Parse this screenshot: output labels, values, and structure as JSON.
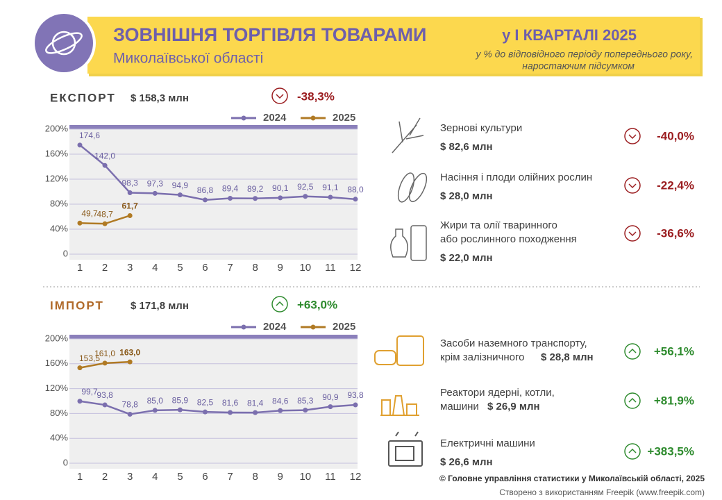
{
  "header": {
    "title": "ЗОВНІШНЯ ТОРГІВЛЯ ТОВАРАМИ",
    "period": "у І КВАРТАЛІ 2025",
    "region": "Миколаївської області",
    "note": [
      "у % до відповідного періоду попереднього року,",
      "наростаючим підсумком"
    ]
  },
  "export": {
    "label": "ЕКСПОРТ",
    "total": "$ 158,3 млн",
    "change": "-38,3%",
    "items": [
      {
        "name": [
          "Зернові культури"
        ],
        "value": "$ 82,6 млн",
        "change": "-40,0%"
      },
      {
        "name": [
          "Насіння і плоди олійних рослин"
        ],
        "value": "$ 28,0 млн",
        "change": "-22,4%"
      },
      {
        "name": [
          "Жири та олії тваринного",
          "або рослинного походження"
        ],
        "value": "$ 22,0 млн",
        "change": "-36,6%"
      }
    ]
  },
  "import": {
    "label": "ІМПОРТ",
    "total": "$ 171,8 млн",
    "change": "+63,0%",
    "items": [
      {
        "name": [
          "Засоби наземного транспорту,",
          "крім залізничного"
        ],
        "value": "$ 28,8 млн",
        "change": "+56,1%"
      },
      {
        "name": [
          "Реактори ядерні, котли,",
          "машини"
        ],
        "value": "$ 26,9 млн",
        "change": "+81,9%"
      },
      {
        "name": [
          "Електричні машини"
        ],
        "value": "$ 26,6 млн",
        "change": "+383,5%"
      }
    ]
  },
  "footer": [
    "© Головне управління статистики у Миколаївській області, 2025",
    "Створено з використанням Freepik (www.freepik.com)"
  ],
  "chart_data": [
    {
      "type": "line",
      "categories": [
        "1",
        "2",
        "3",
        "4",
        "5",
        "6",
        "7",
        "8",
        "9",
        "10",
        "11",
        "12"
      ],
      "series": [
        {
          "name": "2024",
          "color": "#7b6fae",
          "values": [
            174.6,
            142.0,
            98.3,
            97.3,
            94.9,
            86.8,
            89.4,
            89.2,
            90.1,
            92.5,
            91.1,
            88.0
          ],
          "value_labels": [
            "174,6",
            "142,0",
            "98,3",
            "97,3",
            "94,9",
            "86,8",
            "89,4",
            "89,2",
            "90,1",
            "92,5",
            "91,1",
            "88,0"
          ]
        },
        {
          "name": "2025",
          "color": "#b07a24",
          "values": [
            49.7,
            48.7,
            61.7,
            null,
            null,
            null,
            null,
            null,
            null,
            null,
            null,
            null
          ],
          "value_labels": [
            "49,7",
            "48,7",
            "61,7",
            null,
            null,
            null,
            null,
            null,
            null,
            null,
            null,
            null
          ]
        }
      ],
      "ylim": [
        0,
        200
      ],
      "yticks": [
        0,
        {
          "value": 40,
          "label": "40%"
        },
        {
          "value": 80,
          "label": "80%"
        },
        {
          "value": 120,
          "label": "120%"
        },
        {
          "value": 160,
          "label": "160%"
        },
        {
          "value": 200,
          "label": "200%"
        }
      ],
      "grid": true
    },
    {
      "type": "line",
      "categories": [
        "1",
        "2",
        "3",
        "4",
        "5",
        "6",
        "7",
        "8",
        "9",
        "10",
        "11",
        "12"
      ],
      "series": [
        {
          "name": "2024",
          "color": "#7b6fae",
          "values": [
            99.7,
            93.8,
            78.8,
            85.0,
            85.9,
            82.5,
            81.6,
            81.4,
            84.6,
            85.3,
            90.9,
            93.8
          ],
          "value_labels": [
            "99,7",
            "93,8",
            "78,8",
            "85,0",
            "85,9",
            "82,5",
            "81,6",
            "81,4",
            "84,6",
            "85,3",
            "90,9",
            "93,8"
          ]
        },
        {
          "name": "2025",
          "color": "#b07a24",
          "values": [
            153.5,
            161.0,
            163.0,
            null,
            null,
            null,
            null,
            null,
            null,
            null,
            null,
            null
          ],
          "value_labels": [
            "153,5",
            "161,0",
            "163,0",
            null,
            null,
            null,
            null,
            null,
            null,
            null,
            null,
            null
          ]
        }
      ],
      "ylim": [
        0,
        200
      ],
      "yticks": [
        0,
        {
          "value": 40,
          "label": "40%"
        },
        {
          "value": 80,
          "label": "80%"
        },
        {
          "value": 120,
          "label": "120%"
        },
        {
          "value": 160,
          "label": "160%"
        },
        {
          "value": 200,
          "label": "200%"
        }
      ],
      "grid": true
    }
  ]
}
